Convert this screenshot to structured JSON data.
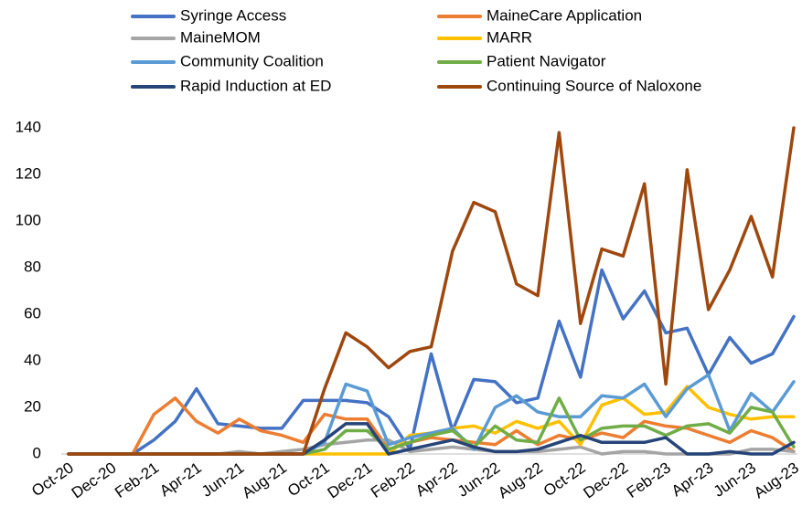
{
  "chart_data": {
    "type": "line",
    "categories": [
      "Oct-20",
      null,
      "Dec-20",
      null,
      "Feb-21",
      null,
      "Apr-21",
      null,
      "Jun-21",
      null,
      "Aug-21",
      null,
      "Oct-21",
      null,
      "Dec-21",
      null,
      "Feb-22",
      null,
      "Apr-22",
      null,
      "Jun-22",
      null,
      "Aug-22",
      null,
      "Oct-22",
      null,
      "Dec-22",
      null,
      "Feb-23",
      null,
      "Apr-23",
      null,
      "Jun-23",
      null,
      "Aug-23"
    ],
    "series": [
      {
        "name": "Syringe Access",
        "color": "#4472c4",
        "values": [
          0,
          0,
          0,
          0,
          6,
          14,
          28,
          13,
          12,
          11,
          11,
          23,
          23,
          23,
          22,
          16,
          2,
          43,
          10,
          32,
          31,
          22,
          24,
          57,
          33,
          79,
          58,
          70,
          52,
          54,
          34,
          50,
          39,
          43,
          59
        ]
      },
      {
        "name": "MaineCare Application",
        "color": "#ed7d31",
        "values": [
          0,
          0,
          0,
          0,
          17,
          24,
          14,
          9,
          15,
          10,
          8,
          5,
          17,
          15,
          15,
          2,
          5,
          7,
          6,
          5,
          4,
          10,
          4,
          8,
          6,
          9,
          7,
          14,
          12,
          11,
          8,
          5,
          10,
          7,
          1
        ]
      },
      {
        "name": "MaineMOM",
        "color": "#a5a5a5",
        "values": [
          0,
          0,
          0,
          0,
          0,
          0,
          0,
          0,
          1,
          0,
          1,
          2,
          4,
          5,
          6,
          6,
          1,
          2,
          3,
          2,
          1,
          1,
          1,
          2,
          3,
          0,
          1,
          1,
          0,
          0,
          0,
          0,
          2,
          2,
          1
        ]
      },
      {
        "name": "MARR",
        "color": "#ffc000",
        "values": [
          0,
          0,
          0,
          0,
          0,
          0,
          0,
          0,
          0,
          0,
          0,
          0,
          0,
          0,
          0,
          0,
          8,
          9,
          11,
          12,
          9,
          14,
          11,
          14,
          4,
          21,
          24,
          17,
          18,
          29,
          20,
          17,
          15,
          16,
          16
        ]
      },
      {
        "name": "Community Coalition",
        "color": "#5b9bd5",
        "values": [
          0,
          0,
          0,
          0,
          0,
          0,
          0,
          0,
          0,
          0,
          0,
          0,
          5,
          30,
          27,
          4,
          7,
          9,
          11,
          2,
          20,
          25,
          18,
          16,
          16,
          25,
          24,
          30,
          16,
          28,
          34,
          10,
          26,
          18,
          31
        ]
      },
      {
        "name": "Patient Navigator",
        "color": "#70ad47",
        "values": [
          0,
          0,
          0,
          0,
          0,
          0,
          0,
          0,
          0,
          0,
          0,
          0,
          2,
          10,
          10,
          2,
          5,
          8,
          10,
          3,
          12,
          6,
          5,
          24,
          6,
          11,
          12,
          12,
          8,
          12,
          13,
          9,
          20,
          18,
          3
        ]
      },
      {
        "name": "Rapid Induction at ED",
        "color": "#264478",
        "values": [
          0,
          0,
          0,
          0,
          0,
          0,
          0,
          0,
          0,
          0,
          0,
          0,
          6,
          13,
          13,
          0,
          2,
          4,
          6,
          3,
          1,
          1,
          2,
          5,
          8,
          5,
          5,
          5,
          7,
          0,
          0,
          1,
          0,
          0,
          5
        ]
      },
      {
        "name": "Continuing Source of Naloxone",
        "color": "#9e480e",
        "values": [
          0,
          0,
          0,
          0,
          0,
          0,
          0,
          0,
          0,
          0,
          0,
          0,
          28,
          52,
          46,
          37,
          44,
          46,
          87,
          108,
          104,
          73,
          68,
          138,
          56,
          88,
          85,
          116,
          30,
          122,
          62,
          79,
          102,
          76,
          140
        ]
      }
    ],
    "ylim": [
      0,
      140
    ],
    "yticks": [
      0,
      20,
      40,
      60,
      80,
      100,
      120,
      140
    ],
    "legend": "top",
    "grid": false
  }
}
